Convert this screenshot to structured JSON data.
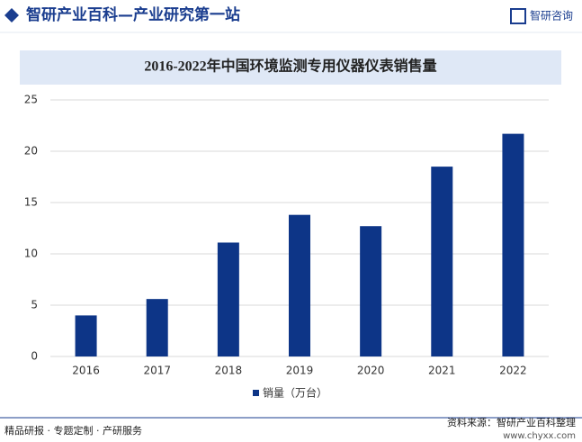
{
  "header": {
    "title": "智研产业百科—产业研究第一站",
    "logo": "智研咨询"
  },
  "chart_data": {
    "type": "bar",
    "title": "2016-2022年中国环境监测专用仪器仪表销售量",
    "categories": [
      "2016",
      "2017",
      "2018",
      "2019",
      "2020",
      "2021",
      "2022"
    ],
    "series": [
      {
        "name": "销量（万台）",
        "color": "#0d3587",
        "values": [
          4.0,
          5.6,
          11.1,
          13.8,
          12.7,
          18.5,
          21.7
        ]
      }
    ],
    "ylim": [
      0,
      25
    ],
    "yticks": [
      0,
      5,
      10,
      15,
      20,
      25
    ],
    "grid": true,
    "legend": "bottom"
  },
  "footer": {
    "left": "精品研报 · 专题定制 · 产研服务",
    "source": "资料来源：智研产业百科整理",
    "url": "www.chyxx.com"
  }
}
